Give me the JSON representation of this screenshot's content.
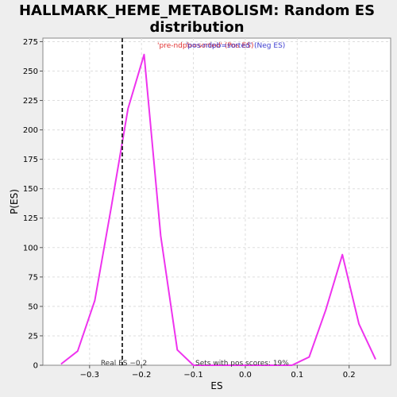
{
  "chart_data": {
    "type": "line",
    "title_line1": "HALLMARK_HEME_METABOLISM: Random ES",
    "title_line2": "distribution",
    "xlabel": "ES",
    "ylabel": "P(ES)",
    "xlim": [
      -0.39,
      0.28
    ],
    "ylim": [
      0,
      278
    ],
    "xticks": [
      -0.3,
      -0.2,
      -0.1,
      0.0,
      0.1,
      0.2
    ],
    "xtick_labels": [
      "−0.3",
      "−0.2",
      "−0.1",
      "0.0",
      "0.1",
      "0.2"
    ],
    "yticks": [
      0,
      25,
      50,
      75,
      100,
      125,
      150,
      175,
      200,
      225,
      250,
      275
    ],
    "ytick_labels": [
      "0",
      "25",
      "50",
      "75",
      "100",
      "125",
      "150",
      "175",
      "200",
      "225",
      "250",
      "275"
    ],
    "grid": true,
    "legend_position": "top",
    "legend": [
      {
        "label": "'pre-ndpb=sorted' (Pos ES)",
        "color": "#e03030"
      },
      {
        "label": "'pos-ndpb=sorted' (Neg ES)",
        "color": "#4040d0"
      }
    ],
    "series": [
      {
        "color": "#ee33ee",
        "x": [
          -0.355,
          -0.323,
          -0.29,
          -0.258,
          -0.226,
          -0.195,
          -0.163,
          -0.131,
          -0.1,
          -0.068,
          -0.036,
          0.0,
          0.03,
          0.06,
          0.09,
          0.123,
          0.155,
          0.187,
          0.219,
          0.251
        ],
        "y": [
          1,
          12,
          55,
          135,
          218,
          264,
          110,
          13,
          0,
          0,
          0,
          0,
          0,
          0,
          0,
          7,
          47,
          94,
          35,
          5
        ]
      }
    ],
    "real_es": {
      "value": -0.237,
      "label": "Real ES −0.2"
    },
    "annotation": "Sets with pos scores: 19%"
  }
}
